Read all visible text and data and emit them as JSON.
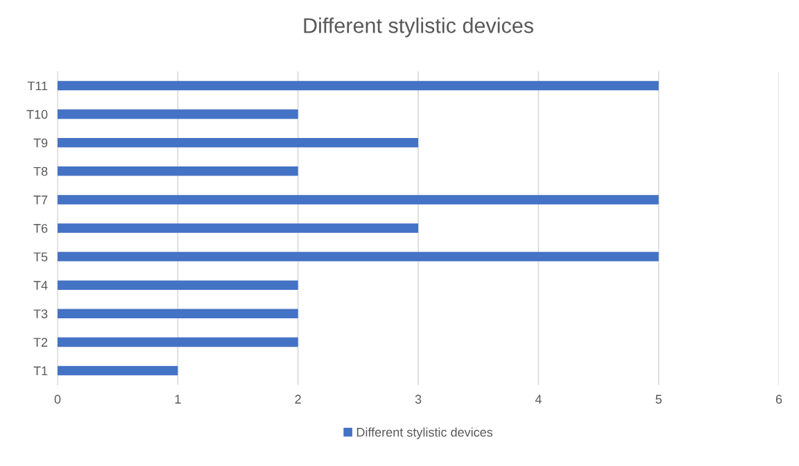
{
  "chart_data": {
    "type": "bar",
    "orientation": "horizontal",
    "title": "Different stylistic devices",
    "categories": [
      "T11",
      "T10",
      "T9",
      "T8",
      "T7",
      "T6",
      "T5",
      "T4",
      "T3",
      "T2",
      "T1"
    ],
    "series": [
      {
        "name": "Different stylistic devices",
        "color": "#4472c4",
        "values": [
          5,
          2,
          3,
          2,
          5,
          3,
          5,
          2,
          2,
          2,
          1
        ]
      }
    ],
    "xlim": [
      0,
      6
    ],
    "xticks": [
      0,
      1,
      2,
      3,
      4,
      5,
      6
    ],
    "grid": "x",
    "legend": "bottom"
  }
}
